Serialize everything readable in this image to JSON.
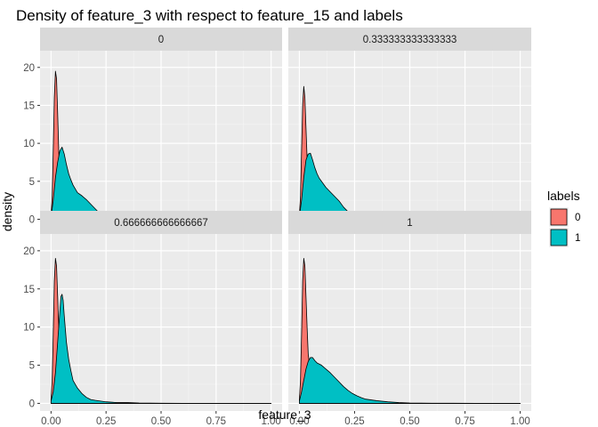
{
  "chart_data": {
    "type": "area",
    "title": "Density of feature_3 with respect to feature_15 and labels",
    "xlabel": "feature_3",
    "ylabel": "density",
    "xlim": [
      0,
      1
    ],
    "ylim": [
      0,
      20
    ],
    "x_ticks": [
      0,
      0.25,
      0.5,
      0.75,
      1
    ],
    "x_tick_labels": [
      "0.00",
      "0.25",
      "0.50",
      "0.75",
      "1.00"
    ],
    "y_ticks": [
      0,
      5,
      10,
      15,
      20
    ],
    "y_tick_labels": [
      "0",
      "5",
      "10",
      "15",
      "20"
    ],
    "grid": true,
    "facet_by": "feature_15",
    "legend": {
      "title": "labels",
      "position": "right",
      "entries": [
        {
          "label": "0",
          "color": "#F8766D"
        },
        {
          "label": "1",
          "color": "#00BFC4"
        }
      ]
    },
    "panels": [
      {
        "strip": "0",
        "series": [
          {
            "label": "0",
            "color": "#F8766D",
            "x": [
              0.0,
              0.005,
              0.01,
              0.015,
              0.02,
              0.025,
              0.03,
              0.035,
              0.04,
              0.05,
              0.06,
              0.07,
              0.08,
              0.1,
              0.12,
              0.15,
              0.2,
              0.25,
              0.3,
              0.4,
              0.6,
              1.0
            ],
            "y": [
              0.5,
              3,
              9,
              16,
              19.5,
              18.5,
              14,
              9,
              5,
              2.5,
              1.5,
              0.8,
              0.4,
              0.15,
              0.05,
              0.02,
              0.01,
              0,
              0,
              0,
              0,
              0
            ]
          },
          {
            "label": "1",
            "color": "#00BFC4",
            "x": [
              0.0,
              0.01,
              0.02,
              0.03,
              0.04,
              0.05,
              0.06,
              0.07,
              0.08,
              0.09,
              0.1,
              0.12,
              0.14,
              0.16,
              0.18,
              0.2,
              0.22,
              0.25,
              0.28,
              0.3,
              0.35,
              0.4,
              0.5,
              0.6,
              0.8,
              1.0
            ],
            "y": [
              0.3,
              2.5,
              5.5,
              7.5,
              9,
              9.5,
              8.6,
              7.2,
              6,
              5.2,
              4.5,
              3.5,
              3.1,
              2.6,
              2.0,
              1.4,
              0.8,
              0.55,
              0.5,
              0.25,
              0.1,
              0.05,
              0.02,
              0.01,
              0,
              0
            ]
          }
        ]
      },
      {
        "strip": "0.333333333333333",
        "series": [
          {
            "label": "0",
            "color": "#F8766D",
            "x": [
              0.0,
              0.005,
              0.01,
              0.015,
              0.02,
              0.025,
              0.03,
              0.035,
              0.04,
              0.05,
              0.06,
              0.07,
              0.08,
              0.1,
              0.12,
              0.15,
              0.2,
              0.3,
              0.5,
              1.0
            ],
            "y": [
              0.5,
              3,
              9,
              15,
              17.5,
              16,
              12,
              8,
              5,
              3,
              2,
              1.2,
              0.6,
              0.2,
              0.1,
              0.05,
              0.02,
              0,
              0,
              0
            ]
          },
          {
            "label": "1",
            "color": "#00BFC4",
            "x": [
              0.0,
              0.01,
              0.02,
              0.03,
              0.04,
              0.05,
              0.06,
              0.07,
              0.08,
              0.09,
              0.1,
              0.12,
              0.14,
              0.16,
              0.18,
              0.2,
              0.22,
              0.25,
              0.28,
              0.3,
              0.35,
              0.4,
              0.5,
              0.6,
              0.8,
              1.0
            ],
            "y": [
              0.3,
              2.5,
              5.5,
              7.8,
              8.6,
              8.7,
              7.8,
              6.8,
              6,
              5.4,
              5,
              4.2,
              3.6,
              3.0,
              2.4,
              1.6,
              1.0,
              0.4,
              0.2,
              0.3,
              0.1,
              0.05,
              0.02,
              0.01,
              0,
              0
            ]
          }
        ]
      },
      {
        "strip": "0.666666666666667",
        "series": [
          {
            "label": "0",
            "color": "#F8766D",
            "x": [
              0.0,
              0.005,
              0.01,
              0.015,
              0.02,
              0.025,
              0.03,
              0.035,
              0.04,
              0.05,
              0.06,
              0.07,
              0.08,
              0.1,
              0.15,
              0.2,
              0.3,
              0.5,
              1.0
            ],
            "y": [
              0.5,
              3,
              9,
              16,
              19,
              18,
              14,
              10,
              6,
              3,
              1.5,
              0.8,
              0.4,
              0.1,
              0.05,
              0.02,
              0,
              0,
              0
            ]
          },
          {
            "label": "1",
            "color": "#00BFC4",
            "x": [
              0.0,
              0.01,
              0.02,
              0.03,
              0.04,
              0.045,
              0.05,
              0.055,
              0.06,
              0.07,
              0.08,
              0.09,
              0.1,
              0.12,
              0.14,
              0.16,
              0.18,
              0.2,
              0.25,
              0.3,
              0.35,
              0.4,
              0.5,
              0.6,
              0.8,
              1.0
            ],
            "y": [
              0.3,
              1.5,
              4,
              8,
              12,
              14,
              14.3,
              13.5,
              11.5,
              8,
              5.8,
              4.3,
              3,
              2.0,
              1.3,
              0.8,
              0.5,
              0.4,
              0.2,
              0.1,
              0.1,
              0.05,
              0.02,
              0.01,
              0,
              0
            ]
          }
        ]
      },
      {
        "strip": "1",
        "series": [
          {
            "label": "0",
            "color": "#F8766D",
            "x": [
              0.0,
              0.005,
              0.01,
              0.015,
              0.02,
              0.025,
              0.03,
              0.035,
              0.04,
              0.05,
              0.06,
              0.07,
              0.08,
              0.1,
              0.12,
              0.15,
              0.2,
              0.3,
              0.5,
              1.0
            ],
            "y": [
              0.5,
              3,
              9,
              16,
              19,
              18,
              14,
              10,
              6.5,
              4,
              2.5,
              1.5,
              0.8,
              0.3,
              0.1,
              0.05,
              0.02,
              0,
              0,
              0
            ]
          },
          {
            "label": "1",
            "color": "#00BFC4",
            "x": [
              0.0,
              0.01,
              0.02,
              0.03,
              0.04,
              0.05,
              0.06,
              0.07,
              0.08,
              0.1,
              0.12,
              0.14,
              0.16,
              0.18,
              0.2,
              0.22,
              0.24,
              0.26,
              0.28,
              0.3,
              0.35,
              0.4,
              0.45,
              0.5,
              0.6,
              0.8,
              1.0
            ],
            "y": [
              0.3,
              1.5,
              3,
              4.5,
              5.5,
              6,
              6,
              5.6,
              5.3,
              5.0,
              4.5,
              4.0,
              3.4,
              2.8,
              2.2,
              1.7,
              1.3,
              1.0,
              0.75,
              0.55,
              0.35,
              0.2,
              0.1,
              0.05,
              0.02,
              0,
              0
            ]
          }
        ]
      }
    ]
  }
}
